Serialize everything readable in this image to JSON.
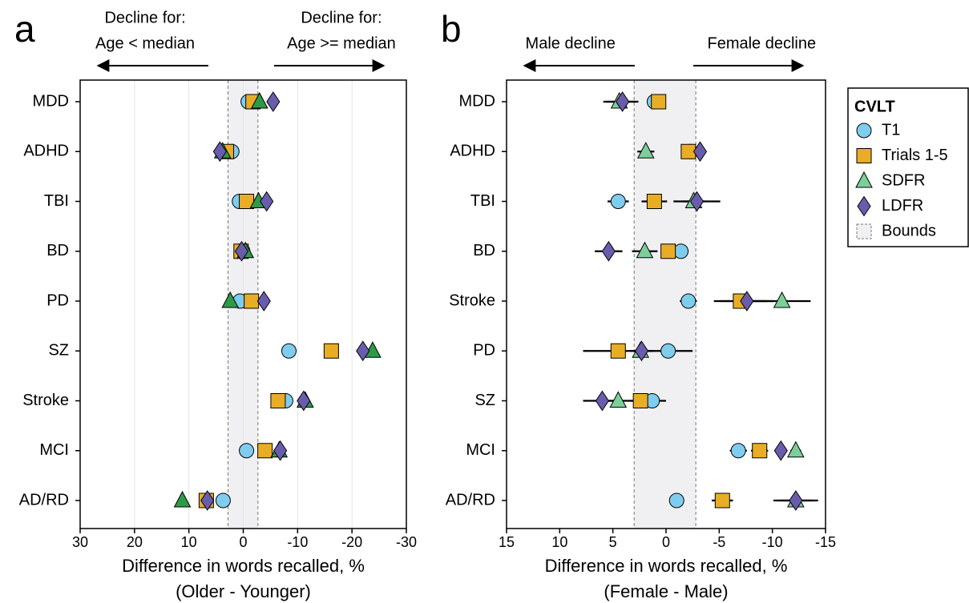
{
  "chart_data": [
    {
      "type": "dot",
      "panel": "a",
      "annotations": {
        "left": [
          "Decline for:",
          "Age < median"
        ],
        "right": [
          "Decline for:",
          "Age >= median"
        ]
      },
      "xlabel": "Difference in words recalled, %",
      "xlabel_sub": "(Older - Younger)",
      "categories": [
        "MDD",
        "ADHD",
        "TBI",
        "BD",
        "PD",
        "SZ",
        "Stroke",
        "MCI",
        "AD/RD"
      ],
      "xlim": [
        30,
        -30
      ],
      "xticks": [
        30,
        20,
        10,
        0,
        -10,
        -20,
        -30
      ],
      "grid": true,
      "bounds": [
        2.8,
        -2.7
      ],
      "series": [
        {
          "marker": "circle",
          "color": "#7fcdee",
          "values": [
            -0.9,
            2.1,
            0.7,
            0.1,
            0.6,
            -8.4,
            -7.8,
            -0.6,
            3.7
          ]
        },
        {
          "marker": "square",
          "color": "#e9ad25",
          "values": [
            -1.8,
            3.1,
            -0.6,
            0.4,
            -1.5,
            -16.2,
            -6.4,
            -4.0,
            6.8
          ]
        },
        {
          "marker": "triangle",
          "color": "#2e9a48",
          "values": [
            -3.0,
            3.8,
            -2.8,
            -0.4,
            2.4,
            -23.8,
            -11.4,
            -6.6,
            11.2
          ]
        },
        {
          "marker": "diamond",
          "color": "#6a5cad",
          "values": [
            -5.5,
            4.3,
            -4.3,
            0.3,
            -3.8,
            -22.0,
            -11.1,
            -6.8,
            6.6
          ]
        }
      ]
    },
    {
      "type": "dot",
      "panel": "b",
      "annotations": {
        "left": [
          "Male decline"
        ],
        "right": [
          "Female decline"
        ]
      },
      "xlabel": "Difference in words recalled, %",
      "xlabel_sub": "(Female - Male)",
      "categories": [
        "MDD",
        "ADHD",
        "TBI",
        "BD",
        "Stroke",
        "PD",
        "SZ",
        "MCI",
        "AD/RD"
      ],
      "xlim": [
        15,
        -15
      ],
      "xticks": [
        15,
        10,
        5,
        0,
        -5,
        -10,
        -15
      ],
      "grid": false,
      "bounds": [
        3.0,
        -2.8
      ],
      "bounds_label": "Bounds",
      "legend_title": "CVLT",
      "legend": "right",
      "series": [
        {
          "name": "T1",
          "marker": "circle",
          "color": "#7fcdee",
          "values": [
            1.1,
            -2.3,
            4.5,
            -1.4,
            -2.1,
            -0.2,
            1.3,
            -6.8,
            -1.0
          ],
          "errors": [
            0.5,
            0.3,
            1.0,
            0.5,
            0.8,
            2.3,
            1.3,
            0.8,
            0.7
          ]
        },
        {
          "name": "Trials 1-5",
          "marker": "square",
          "color": "#e9ad25",
          "values": [
            0.7,
            -2.1,
            1.1,
            -0.2,
            -7.0,
            4.5,
            2.4,
            -8.8,
            -5.3
          ],
          "errors": [
            0.5,
            0.3,
            1.2,
            0.5,
            2.5,
            3.3,
            1.0,
            0.8,
            1.0
          ]
        },
        {
          "name": "SDFR",
          "marker": "triangle",
          "color": "#7dcf9a",
          "values": [
            4.4,
            1.9,
            -2.6,
            2.0,
            -10.9,
            2.4,
            4.5,
            -12.2,
            -12.2
          ],
          "errors": [
            1.5,
            0.8,
            1.0,
            1.2,
            2.7,
            1.0,
            1.5,
            0.5,
            2.1
          ]
        },
        {
          "name": "LDFR",
          "marker": "diamond",
          "color": "#6a5cad",
          "values": [
            4.1,
            -3.2,
            -2.9,
            5.4,
            -7.6,
            2.3,
            6.0,
            -10.8,
            -12.2
          ],
          "errors": [
            1.5,
            0.3,
            2.2,
            1.3,
            2.5,
            1.0,
            1.8,
            0.5,
            1.5
          ]
        }
      ]
    }
  ]
}
